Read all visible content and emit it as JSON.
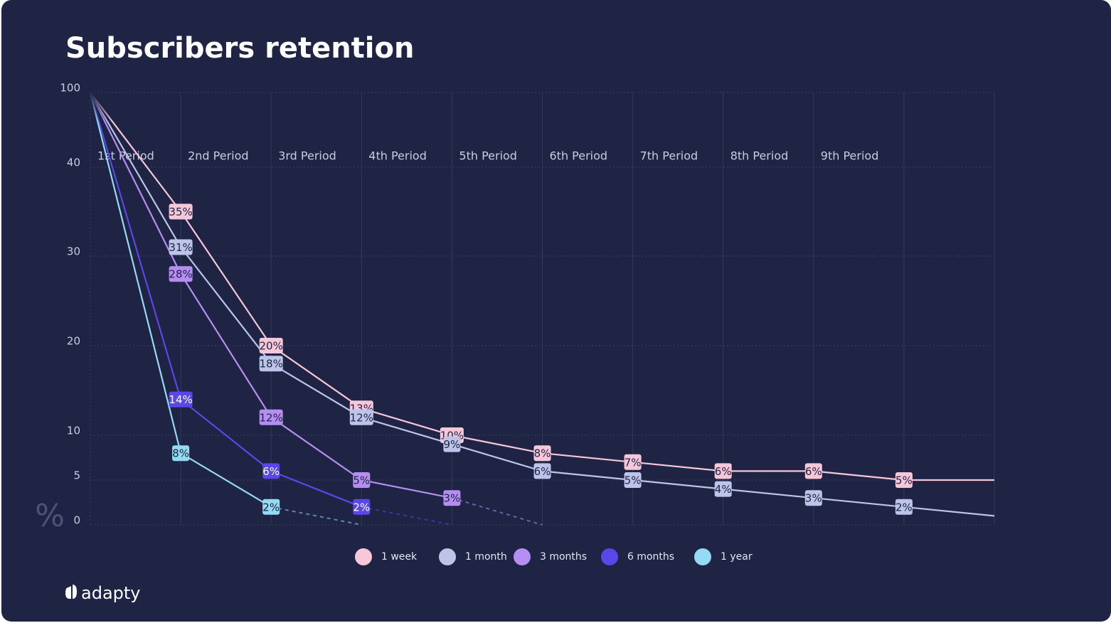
{
  "chart_data": {
    "type": "line",
    "title": "Subscribers retention",
    "y_label": "%",
    "brand": "adapty",
    "categories": [
      "1st Period",
      "2nd Period",
      "3rd Period",
      "4th Period",
      "5th Period",
      "6th Period",
      "7th Period",
      "8th Period",
      "9th Period",
      null,
      null
    ],
    "ylim": [
      0,
      100
    ],
    "yticks": [
      0,
      5,
      10,
      20,
      30,
      40,
      100
    ],
    "grid": true,
    "legend": "bottom",
    "series": [
      {
        "name": "1 week",
        "color": "#f6c6d9",
        "values": [
          100,
          35,
          20,
          13,
          10,
          8,
          7,
          6,
          6,
          5,
          5
        ],
        "value_labels": [
          null,
          "35%",
          "20%",
          "13%",
          "10%",
          "8%",
          "7%",
          "6%",
          "6%",
          "5%",
          null
        ]
      },
      {
        "name": "1 month",
        "color": "#bcc4ea",
        "values": [
          100,
          31,
          18,
          12,
          9,
          6,
          5,
          4,
          3,
          2,
          1
        ],
        "value_labels": [
          null,
          "31%",
          "18%",
          "12%",
          "9%",
          "6%",
          "5%",
          "4%",
          "3%",
          "2%",
          null
        ]
      },
      {
        "name": "3 months",
        "color": "#b68ef2",
        "dashed_from": 4,
        "values": [
          100,
          28,
          12,
          5,
          3,
          0,
          null,
          null,
          null,
          null,
          null
        ],
        "value_labels": [
          null,
          "28%",
          "12%",
          "5%",
          "3%",
          null,
          null,
          null,
          null,
          null,
          null
        ]
      },
      {
        "name": "6 months",
        "color": "#5b46ea",
        "dashed_from": 3,
        "values": [
          100,
          14,
          6,
          2,
          0,
          null,
          null,
          null,
          null,
          null,
          null
        ],
        "value_labels": [
          null,
          "14%",
          "6%",
          "2%",
          null,
          null,
          null,
          null,
          null,
          null,
          null
        ]
      },
      {
        "name": "1 year",
        "color": "#93daf2",
        "dashed_from": 2,
        "values": [
          100,
          8,
          2,
          0,
          null,
          null,
          null,
          null,
          null,
          null,
          null
        ],
        "value_labels": [
          null,
          "8%",
          "2%",
          null,
          null,
          null,
          null,
          null,
          null,
          null,
          null
        ]
      }
    ]
  }
}
